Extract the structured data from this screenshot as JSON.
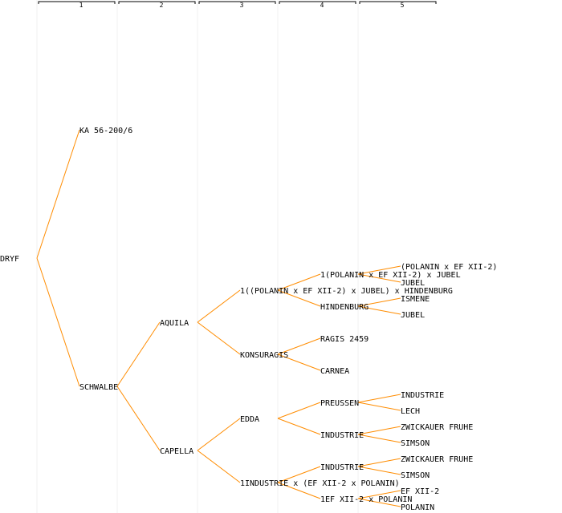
{
  "colors": {
    "edge": "#ff8c00",
    "text": "#000000",
    "guide": "#f2f2f2",
    "background": "#ffffff"
  },
  "generations": [
    "1",
    "2",
    "3",
    "4",
    "5"
  ],
  "nodes": {
    "root": "DRYF",
    "ka": "KA 56-200/6",
    "schwalbe": "SCHWALBE",
    "aquila": "AQUILA",
    "capella": "CAPELLA",
    "polhind": "1((POLANIN x EF XII-2) x JUBEL) x HINDENBURG",
    "konsuragis": "KONSURAGIS",
    "edda": "EDDA",
    "indpol": "1INDUSTRIE x (EF XII-2 x POLANIN)",
    "poljub": "1(POLANIN x EF XII-2) x JUBEL",
    "hindenburg": "HINDENBURG",
    "ragis": "RAGIS 2459",
    "carnea": "CARNEA",
    "preussen": "PREUSSEN",
    "industrie_a": "INDUSTRIE",
    "industrie_b": "INDUSTRIE",
    "efpol": "1EF XII-2 x POLANIN",
    "g5_polef": "(POLANIN x EF XII-2)",
    "g5_jubel_a": "JUBEL",
    "g5_ismene": "ISMENE",
    "g5_jubel_b": "JUBEL",
    "g5_industrie": "INDUSTRIE",
    "g5_lech": "LECH",
    "g5_zwickauer_a": "ZWICKAUER FRUHE",
    "g5_simson_a": "SIMSON",
    "g5_zwickauer_b": "ZWICKAUER FRUHE",
    "g5_simson_b": "SIMSON",
    "g5_efxii": "EF XII-2",
    "g5_polanin": "POLANIN"
  }
}
